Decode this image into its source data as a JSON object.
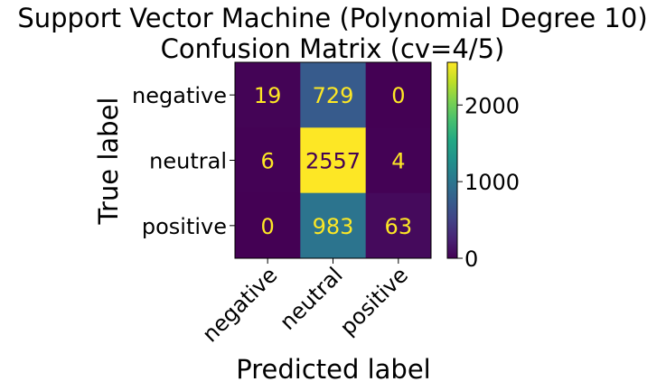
{
  "chart_data": {
    "type": "heatmap",
    "title_lines": [
      "Support Vector Machine (Polynomial Degree 10)",
      "Confusion Matrix (cv=4/5)"
    ],
    "xlabel": "Predicted label",
    "ylabel": "True label",
    "x_categories": [
      "negative",
      "neutral",
      "positive"
    ],
    "y_categories": [
      "negative",
      "neutral",
      "positive"
    ],
    "values": [
      [
        19,
        729,
        0
      ],
      [
        6,
        2557,
        4
      ],
      [
        0,
        983,
        63
      ]
    ],
    "colormap": "viridis",
    "colorbar": {
      "range": [
        0,
        2557
      ],
      "ticks": [
        0,
        1000,
        2000
      ]
    },
    "text_colors": {
      "on_dark": "#fde725",
      "on_light": "#440154"
    }
  }
}
